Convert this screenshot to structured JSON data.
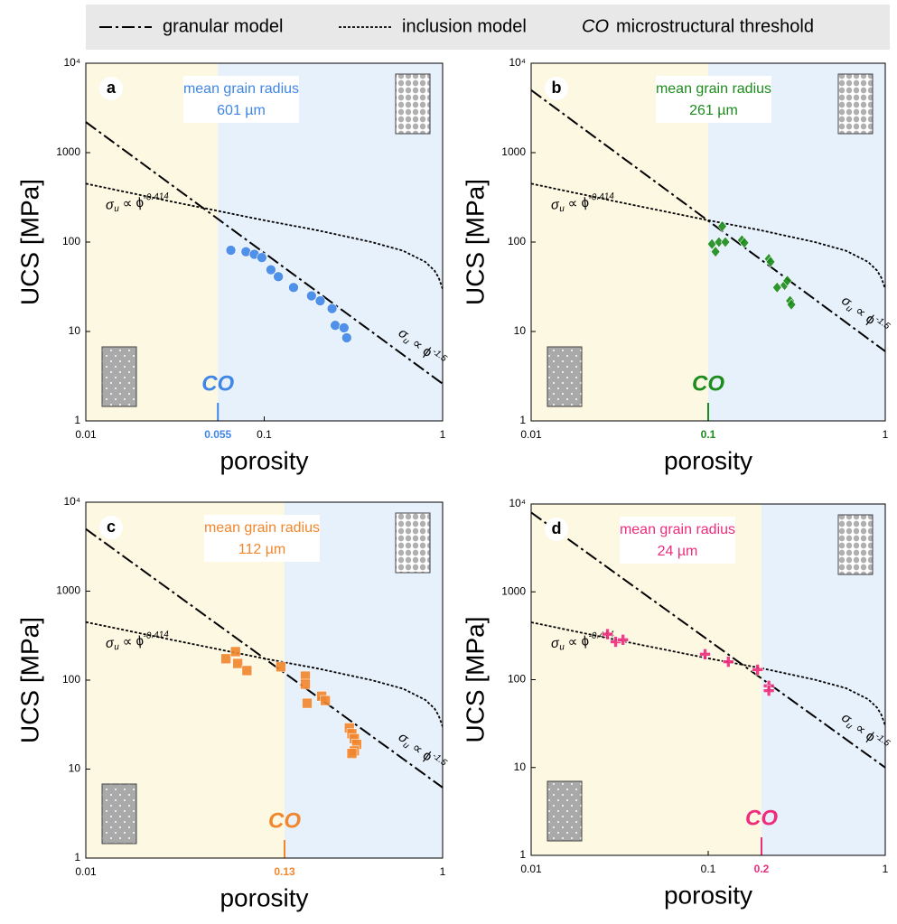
{
  "legend": {
    "items": [
      {
        "name": "granular model",
        "dash": "dashdot"
      },
      {
        "name": "inclusion model",
        "dash": "dotted"
      },
      {
        "symbol": "CO",
        "name": "microstructural threshold"
      }
    ]
  },
  "chart_data": [
    {
      "type": "scatter",
      "label": "a",
      "annotation": {
        "title": "mean grain radius",
        "value": "601 µm"
      },
      "color": "#3f86e6",
      "marker": "circle",
      "xlabel": "porosity",
      "ylabel": "UCS [MPa]",
      "xscale": "log",
      "yscale": "log",
      "xlim": [
        0.01,
        1
      ],
      "ylim": [
        1,
        10000
      ],
      "xticks": [
        0.01,
        0.1,
        1
      ],
      "yticks": [
        1,
        10,
        100,
        1000,
        {
          "value": 10000,
          "label": "10⁴"
        }
      ],
      "threshold": {
        "value": 0.055,
        "label": "CO"
      },
      "series": [
        {
          "dash": "dashdot",
          "x": [
            0.01,
            1
          ],
          "values": [
            2200,
            2.6
          ],
          "formula": {
            "text": "σ",
            "sub": "u",
            "rel": " ∝ ϕ",
            "sup": "-1.5"
          }
        },
        {
          "dash": "dotted",
          "x": [
            0.01,
            0.03,
            0.1,
            0.2,
            0.4,
            0.6,
            0.8,
            0.9,
            0.95,
            1
          ],
          "values": [
            450,
            285,
            175,
            135,
            100,
            80,
            60,
            48,
            40,
            30
          ],
          "formula": {
            "text": "σ",
            "sub": "u",
            "rel": " ∝ ϕ",
            "sup": "-0.414"
          }
        }
      ],
      "x": [
        0.065,
        0.079,
        0.088,
        0.097,
        0.109,
        0.12,
        0.146,
        0.184,
        0.206,
        0.24,
        0.25,
        0.28,
        0.29
      ],
      "values": [
        81,
        78,
        73,
        67,
        49,
        41,
        31,
        25,
        22,
        18,
        11.7,
        11,
        8.5
      ]
    },
    {
      "type": "scatter",
      "label": "b",
      "annotation": {
        "title": "mean grain radius",
        "value": "261 µm"
      },
      "color": "#1c8c1c",
      "marker": "diamond",
      "xlabel": "porosity",
      "ylabel": "UCS [MPa]",
      "xscale": "log",
      "yscale": "log",
      "xlim": [
        0.01,
        1
      ],
      "ylim": [
        1,
        10000
      ],
      "xticks": [
        0.01,
        1
      ],
      "yticks": [
        1,
        10,
        100,
        1000,
        {
          "value": 10000,
          "label": "10⁴"
        }
      ],
      "threshold": {
        "value": 0.1,
        "label": "CO"
      },
      "series": [
        {
          "dash": "dashdot",
          "x": [
            0.01,
            1
          ],
          "values": [
            5000,
            6
          ],
          "formula": {
            "text": "σ",
            "sub": "u",
            "rel": " ∝ ϕ",
            "sup": "-1.5"
          }
        },
        {
          "dash": "dotted",
          "x": [
            0.01,
            0.03,
            0.1,
            0.2,
            0.4,
            0.6,
            0.8,
            0.9,
            0.95,
            1
          ],
          "values": [
            450,
            285,
            175,
            135,
            100,
            80,
            60,
            48,
            40,
            30
          ],
          "formula": {
            "text": "σ",
            "sub": "u",
            "rel": " ∝ ϕ",
            "sup": "-0.414"
          }
        }
      ],
      "x": [
        0.105,
        0.11,
        0.115,
        0.12,
        0.125,
        0.155,
        0.16,
        0.22,
        0.225,
        0.245,
        0.27,
        0.28,
        0.29,
        0.295
      ],
      "values": [
        95,
        78,
        100,
        150,
        100,
        105,
        98,
        65,
        60,
        31,
        33,
        37,
        22,
        20
      ]
    },
    {
      "type": "scatter",
      "label": "c",
      "annotation": {
        "title": "mean grain radius",
        "value": "112 µm"
      },
      "color": "#f2862c",
      "marker": "square",
      "xlabel": "porosity",
      "ylabel": "UCS [MPa]",
      "xscale": "log",
      "yscale": "log",
      "xlim": [
        0.01,
        1
      ],
      "ylim": [
        1,
        10000
      ],
      "xticks": [
        0.01,
        1
      ],
      "yticks": [
        1,
        10,
        100,
        1000,
        {
          "value": 10000,
          "label": "10⁴"
        }
      ],
      "threshold": {
        "value": 0.13,
        "label": "CO"
      },
      "series": [
        {
          "dash": "dashdot",
          "x": [
            0.01,
            1
          ],
          "values": [
            5000,
            6.2
          ],
          "formula": {
            "text": "σ",
            "sub": "u",
            "rel": " ∝ ϕ",
            "sup": "-1.5"
          }
        },
        {
          "dash": "dotted",
          "x": [
            0.01,
            0.03,
            0.1,
            0.2,
            0.4,
            0.6,
            0.8,
            0.9,
            0.95,
            1
          ],
          "values": [
            450,
            285,
            175,
            135,
            100,
            80,
            60,
            48,
            40,
            30
          ],
          "formula": {
            "text": "σ",
            "sub": "u",
            "rel": " ∝ ϕ",
            "sup": "-0.414"
          }
        }
      ],
      "x": [
        0.061,
        0.069,
        0.071,
        0.08,
        0.124,
        0.17,
        0.17,
        0.174,
        0.21,
        0.22,
        0.3,
        0.31,
        0.32,
        0.33,
        0.32,
        0.31
      ],
      "values": [
        174,
        209,
        154,
        128,
        141,
        111,
        90,
        55,
        66,
        59,
        29,
        25,
        22,
        19,
        16,
        15
      ]
    },
    {
      "type": "scatter",
      "label": "d",
      "annotation": {
        "title": "mean grain radius",
        "value": "24 µm"
      },
      "color": "#ee2c7c",
      "marker": "plus",
      "xlabel": "porosity",
      "ylabel": "UCS [MPa]",
      "xscale": "log",
      "yscale": "log",
      "xlim": [
        0.01,
        1
      ],
      "ylim": [
        1,
        10000
      ],
      "xticks": [
        0.01,
        0.1,
        1
      ],
      "yticks": [
        1,
        10,
        100,
        1000,
        {
          "value": 10000,
          "label": "10⁴"
        }
      ],
      "threshold": {
        "value": 0.2,
        "label": "CO"
      },
      "series": [
        {
          "dash": "dashdot",
          "x": [
            0.01,
            1
          ],
          "values": [
            8000,
            10
          ],
          "formula": {
            "text": "σ",
            "sub": "u",
            "rel": " ∝ ϕ",
            "sup": "-1.5"
          }
        },
        {
          "dash": "dotted",
          "x": [
            0.01,
            0.03,
            0.1,
            0.2,
            0.4,
            0.6,
            0.8,
            0.9,
            0.95,
            1
          ],
          "values": [
            450,
            285,
            175,
            135,
            100,
            80,
            60,
            48,
            40,
            30
          ],
          "formula": {
            "text": "σ",
            "sub": "u",
            "rel": " ∝ ϕ",
            "sup": "-0.414"
          }
        }
      ],
      "x": [
        0.027,
        0.03,
        0.033,
        0.096,
        0.13,
        0.19,
        0.22,
        0.22
      ],
      "values": [
        330,
        270,
        285,
        195,
        160,
        130,
        85,
        75
      ]
    }
  ]
}
